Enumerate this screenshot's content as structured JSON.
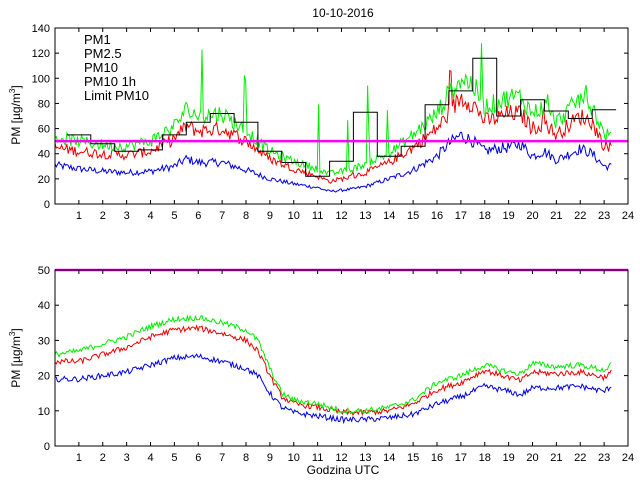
{
  "chart_data": [
    {
      "type": "line",
      "title": "10-10-2016",
      "ylabel_text": "PM [µg/m",
      "ylabel_sup": "3",
      "ylabel_close": "]",
      "xlabel": "",
      "ylim": [
        0,
        140
      ],
      "xlim": [
        0,
        24
      ],
      "yticks": [
        0,
        20,
        40,
        60,
        80,
        100,
        120,
        140
      ],
      "xticks": [
        1,
        2,
        3,
        4,
        5,
        6,
        7,
        8,
        9,
        10,
        11,
        12,
        13,
        14,
        15,
        16,
        17,
        18,
        19,
        20,
        21,
        22,
        23,
        24
      ],
      "legend": {
        "placement": "top-left",
        "entries": [
          {
            "label": "PM1",
            "color": "#0000dd"
          },
          {
            "label": "PM2.5",
            "color": "#ee0000"
          },
          {
            "label": "PM10",
            "color": "#00ee00"
          },
          {
            "label": "PM10 1h",
            "color": "#000000"
          },
          {
            "label": "Limit PM10",
            "color": "#ff00ff"
          }
        ]
      },
      "limit_value": 50,
      "series": [
        {
          "name": "PM1",
          "color": "#0000dd",
          "knots_x": [
            0,
            1,
            2,
            3,
            4,
            5,
            5.5,
            6,
            7,
            8,
            9,
            10,
            11,
            11.5,
            12,
            12.5,
            13,
            14,
            15,
            16,
            16.5,
            17,
            17.5,
            18,
            18.5,
            19,
            19.5,
            20,
            20.5,
            21,
            22,
            22.5,
            23,
            23.3
          ],
          "knots_y": [
            31,
            28,
            26,
            25,
            26,
            30,
            36,
            33,
            33,
            27,
            20,
            16,
            13,
            10,
            11,
            12,
            14,
            20,
            27,
            38,
            48,
            55,
            50,
            42,
            44,
            45,
            48,
            38,
            42,
            35,
            44,
            40,
            30,
            30
          ]
        },
        {
          "name": "PM2.5",
          "color": "#ee0000",
          "knots_x": [
            0,
            1,
            2,
            3,
            4,
            5,
            5.5,
            6,
            7,
            8,
            9,
            10,
            11,
            11.5,
            12,
            12.5,
            13,
            14,
            15,
            16,
            16.5,
            17,
            17.5,
            18,
            18.5,
            19,
            19.5,
            20,
            20.5,
            21,
            22,
            22.5,
            23,
            23.3
          ],
          "knots_y": [
            45,
            42,
            40,
            39,
            42,
            52,
            62,
            58,
            60,
            50,
            36,
            28,
            22,
            18,
            20,
            22,
            25,
            33,
            45,
            60,
            72,
            85,
            80,
            66,
            68,
            72,
            72,
            60,
            65,
            55,
            70,
            65,
            46,
            46
          ]
        },
        {
          "name": "PM10",
          "color": "#00ee00",
          "knots_x": [
            0,
            1,
            2,
            3,
            4,
            5,
            5.5,
            6,
            7,
            8,
            9,
            10,
            11,
            11.5,
            12,
            12.5,
            13,
            14,
            15,
            16,
            16.5,
            17,
            17.5,
            18,
            18.5,
            19,
            19.5,
            20,
            20.5,
            21,
            22,
            22.5,
            23,
            23.3
          ],
          "knots_y": [
            53,
            50,
            47,
            46,
            50,
            62,
            75,
            70,
            72,
            58,
            42,
            34,
            28,
            24,
            26,
            28,
            32,
            40,
            55,
            72,
            88,
            100,
            95,
            78,
            80,
            85,
            85,
            72,
            78,
            65,
            84,
            78,
            55,
            55
          ]
        },
        {
          "name": "PM10 1h",
          "color": "#000000",
          "hours": [
            1,
            2,
            3,
            4,
            5,
            6,
            7,
            8,
            9,
            10,
            11,
            12,
            13,
            14,
            15,
            16,
            17,
            18,
            19,
            20,
            21,
            22,
            23
          ],
          "values": [
            55,
            48,
            42,
            43,
            55,
            65,
            72,
            65,
            42,
            33,
            22,
            34,
            73,
            38,
            46,
            79,
            90,
            116,
            70,
            83,
            74,
            68,
            75
          ]
        }
      ]
    },
    {
      "type": "line",
      "title": "",
      "ylabel_text": "PM [µg/m",
      "ylabel_sup": "3",
      "ylabel_close": "]",
      "xlabel": "Godzina UTC",
      "ylim": [
        0,
        50
      ],
      "xlim": [
        0,
        24
      ],
      "yticks": [
        0,
        10,
        20,
        30,
        40,
        50
      ],
      "xticks": [
        1,
        2,
        3,
        4,
        5,
        6,
        7,
        8,
        9,
        10,
        11,
        12,
        13,
        14,
        15,
        16,
        17,
        18,
        19,
        20,
        21,
        22,
        23,
        24
      ],
      "limit_value": 50,
      "series": [
        {
          "name": "PM1",
          "color": "#0000dd",
          "knots_x": [
            0,
            1,
            2,
            3,
            4,
            5,
            6,
            7,
            8,
            8.5,
            9,
            9.5,
            10,
            11,
            12,
            13,
            14,
            15,
            16,
            17,
            18,
            19,
            19.5,
            20,
            21,
            22,
            23,
            23.3
          ],
          "knots_y": [
            19,
            19,
            20,
            21,
            23,
            25,
            25.5,
            24,
            22,
            20,
            15,
            11,
            9.5,
            8.5,
            7.5,
            7.5,
            8,
            9,
            12,
            14,
            17,
            15.5,
            14.5,
            16.5,
            16.5,
            17,
            15.5,
            17
          ]
        },
        {
          "name": "PM2.5",
          "color": "#ee0000",
          "knots_x": [
            0,
            1,
            2,
            3,
            4,
            5,
            6,
            7,
            8,
            8.5,
            9,
            9.5,
            10,
            11,
            12,
            13,
            14,
            15,
            16,
            17,
            18,
            19,
            19.5,
            20,
            21,
            22,
            23,
            23.3
          ],
          "knots_y": [
            24,
            24,
            26,
            28,
            31,
            33,
            33.5,
            32,
            30,
            27,
            20,
            14,
            12,
            11,
            9.5,
            9.5,
            10,
            12,
            16,
            18,
            21.5,
            19.5,
            18.5,
            21,
            20.5,
            21,
            19.5,
            21
          ]
        },
        {
          "name": "PM10",
          "color": "#00ee00",
          "knots_x": [
            0,
            1,
            2,
            3,
            4,
            5,
            6,
            7,
            8,
            8.5,
            9,
            9.5,
            10,
            11,
            12,
            13,
            14,
            15,
            16,
            17,
            18,
            19,
            19.5,
            20,
            21,
            22,
            23,
            23.3
          ],
          "knots_y": [
            26,
            27,
            29,
            31,
            34,
            36,
            36.5,
            35,
            33,
            30,
            22,
            15,
            13,
            12,
            10,
            10,
            11,
            13,
            18,
            20,
            23,
            21,
            20.5,
            23.5,
            22.5,
            23,
            21.5,
            23
          ]
        }
      ]
    }
  ]
}
